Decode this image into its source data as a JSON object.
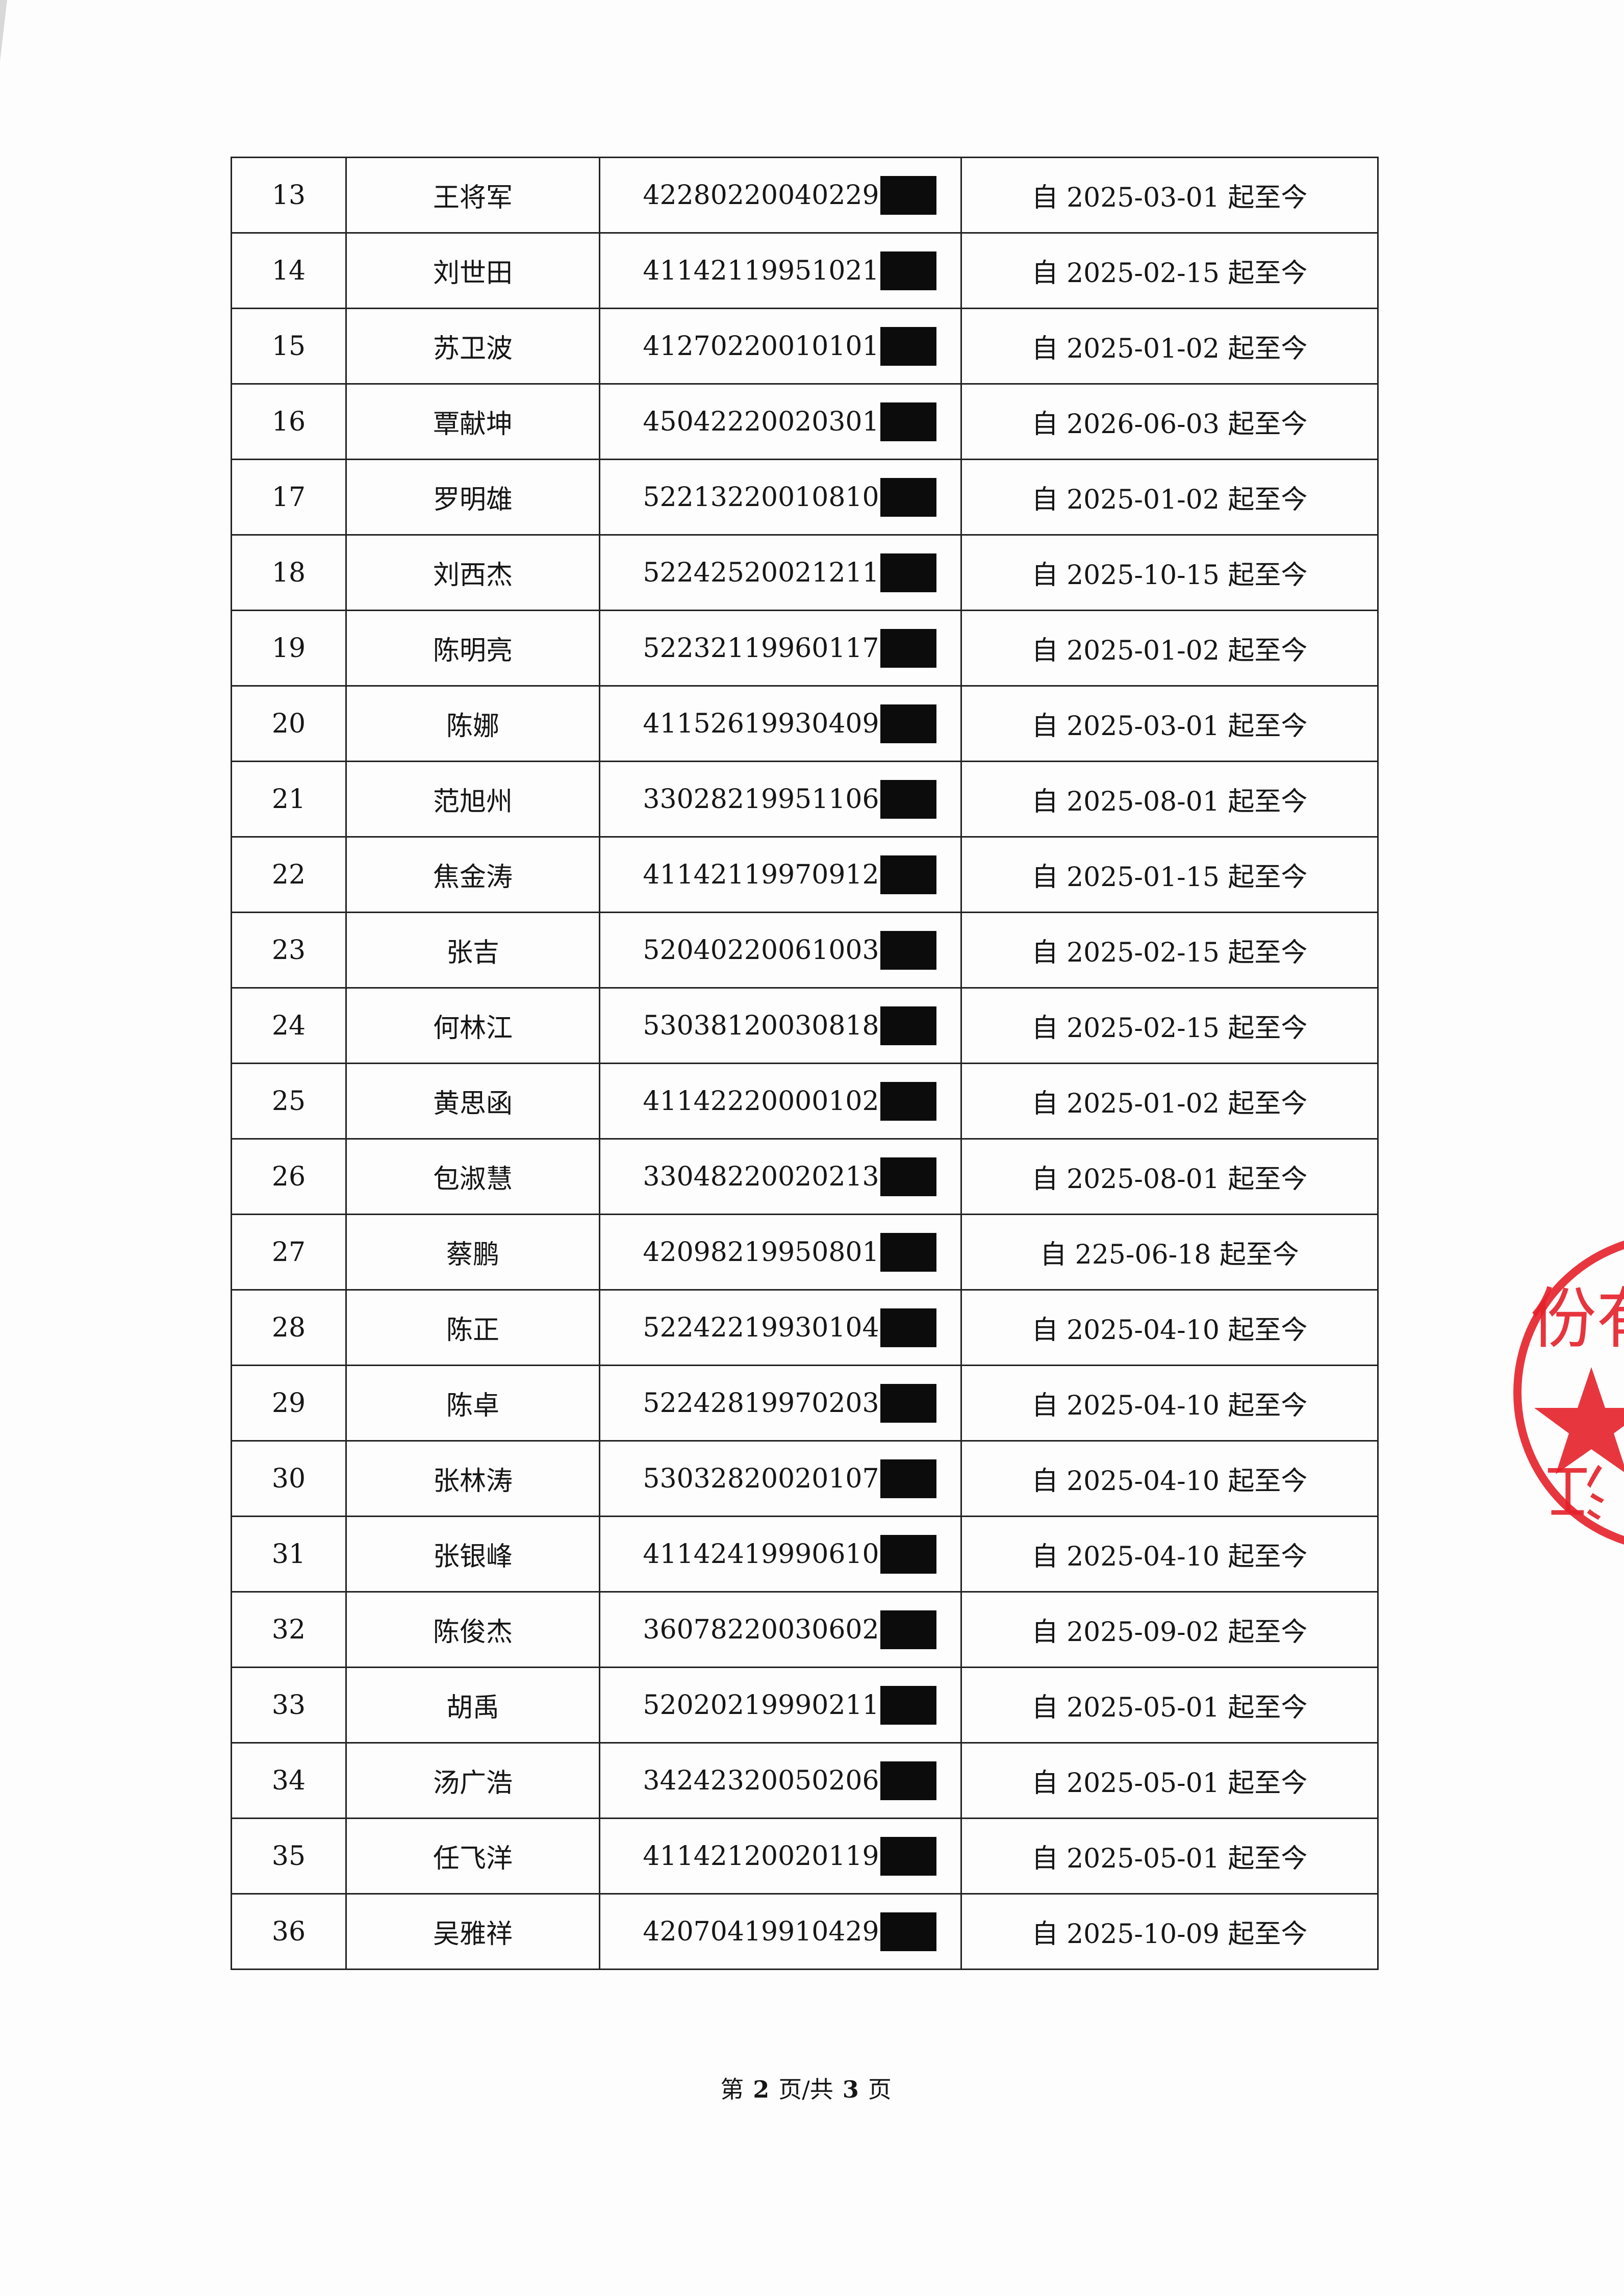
{
  "rows": [
    {
      "no": "13",
      "name": "王将军",
      "id_prefix": "42280220040229",
      "date": "自 2025-03-01 起至今"
    },
    {
      "no": "14",
      "name": "刘世田",
      "id_prefix": "41142119951021",
      "date": "自 2025-02-15 起至今"
    },
    {
      "no": "15",
      "name": "苏卫波",
      "id_prefix": "41270220010101",
      "date": "自 2025-01-02 起至今"
    },
    {
      "no": "16",
      "name": "覃献坤",
      "id_prefix": "45042220020301",
      "date": "自 2026-06-03 起至今"
    },
    {
      "no": "17",
      "name": "罗明雄",
      "id_prefix": "52213220010810",
      "date": "自 2025-01-02 起至今"
    },
    {
      "no": "18",
      "name": "刘西杰",
      "id_prefix": "52242520021211",
      "date": "自 2025-10-15 起至今"
    },
    {
      "no": "19",
      "name": "陈明亮",
      "id_prefix": "52232119960117",
      "date": "自 2025-01-02 起至今"
    },
    {
      "no": "20",
      "name": "陈娜",
      "id_prefix": "41152619930409",
      "date": "自 2025-03-01 起至今"
    },
    {
      "no": "21",
      "name": "范旭州",
      "id_prefix": "33028219951106",
      "date": "自 2025-08-01 起至今"
    },
    {
      "no": "22",
      "name": "焦金涛",
      "id_prefix": "41142119970912",
      "date": "自 2025-01-15 起至今"
    },
    {
      "no": "23",
      "name": "张吉",
      "id_prefix": "52040220061003",
      "date": "自 2025-02-15 起至今"
    },
    {
      "no": "24",
      "name": "何林江",
      "id_prefix": "53038120030818",
      "date": "自 2025-02-15 起至今"
    },
    {
      "no": "25",
      "name": "黄思函",
      "id_prefix": "41142220000102",
      "date": "自 2025-01-02 起至今"
    },
    {
      "no": "26",
      "name": "包淑慧",
      "id_prefix": "33048220020213",
      "date": "自 2025-08-01 起至今"
    },
    {
      "no": "27",
      "name": "蔡鹏",
      "id_prefix": "42098219950801",
      "date": "自 225-06-18 起至今"
    },
    {
      "no": "28",
      "name": "陈正",
      "id_prefix": "52242219930104",
      "date": "自 2025-04-10 起至今"
    },
    {
      "no": "29",
      "name": "陈卓",
      "id_prefix": "52242819970203",
      "date": "自 2025-04-10 起至今"
    },
    {
      "no": "30",
      "name": "张林涛",
      "id_prefix": "53032820020107",
      "date": "自 2025-04-10 起至今"
    },
    {
      "no": "31",
      "name": "张银峰",
      "id_prefix": "41142419990610",
      "date": "自 2025-04-10 起至今"
    },
    {
      "no": "32",
      "name": "陈俊杰",
      "id_prefix": "36078220030602",
      "date": "自 2025-09-02 起至今"
    },
    {
      "no": "33",
      "name": "胡禹",
      "id_prefix": "52020219990211",
      "date": "自 2025-05-01 起至今"
    },
    {
      "no": "34",
      "name": "汤广浩",
      "id_prefix": "34242320050206",
      "date": "自 2025-05-01 起至今"
    },
    {
      "no": "35",
      "name": "任飞洋",
      "id_prefix": "41142120020119",
      "date": "自 2025-05-01 起至今"
    },
    {
      "no": "36",
      "name": "吴雅祥",
      "id_prefix": "42070419910429",
      "date": "自 2025-10-09 起至今"
    }
  ],
  "footer": {
    "prefix": "第",
    "current": "2",
    "middle": "页/共",
    "total": "3",
    "suffix": "页"
  },
  "stamp": {
    "visible_text_top": "份有",
    "visible_text_bottom": "江",
    "color": "#e5202a",
    "icon": "star-icon"
  },
  "colors": {
    "redaction": "#0c0c0c",
    "ink": "#161616"
  }
}
